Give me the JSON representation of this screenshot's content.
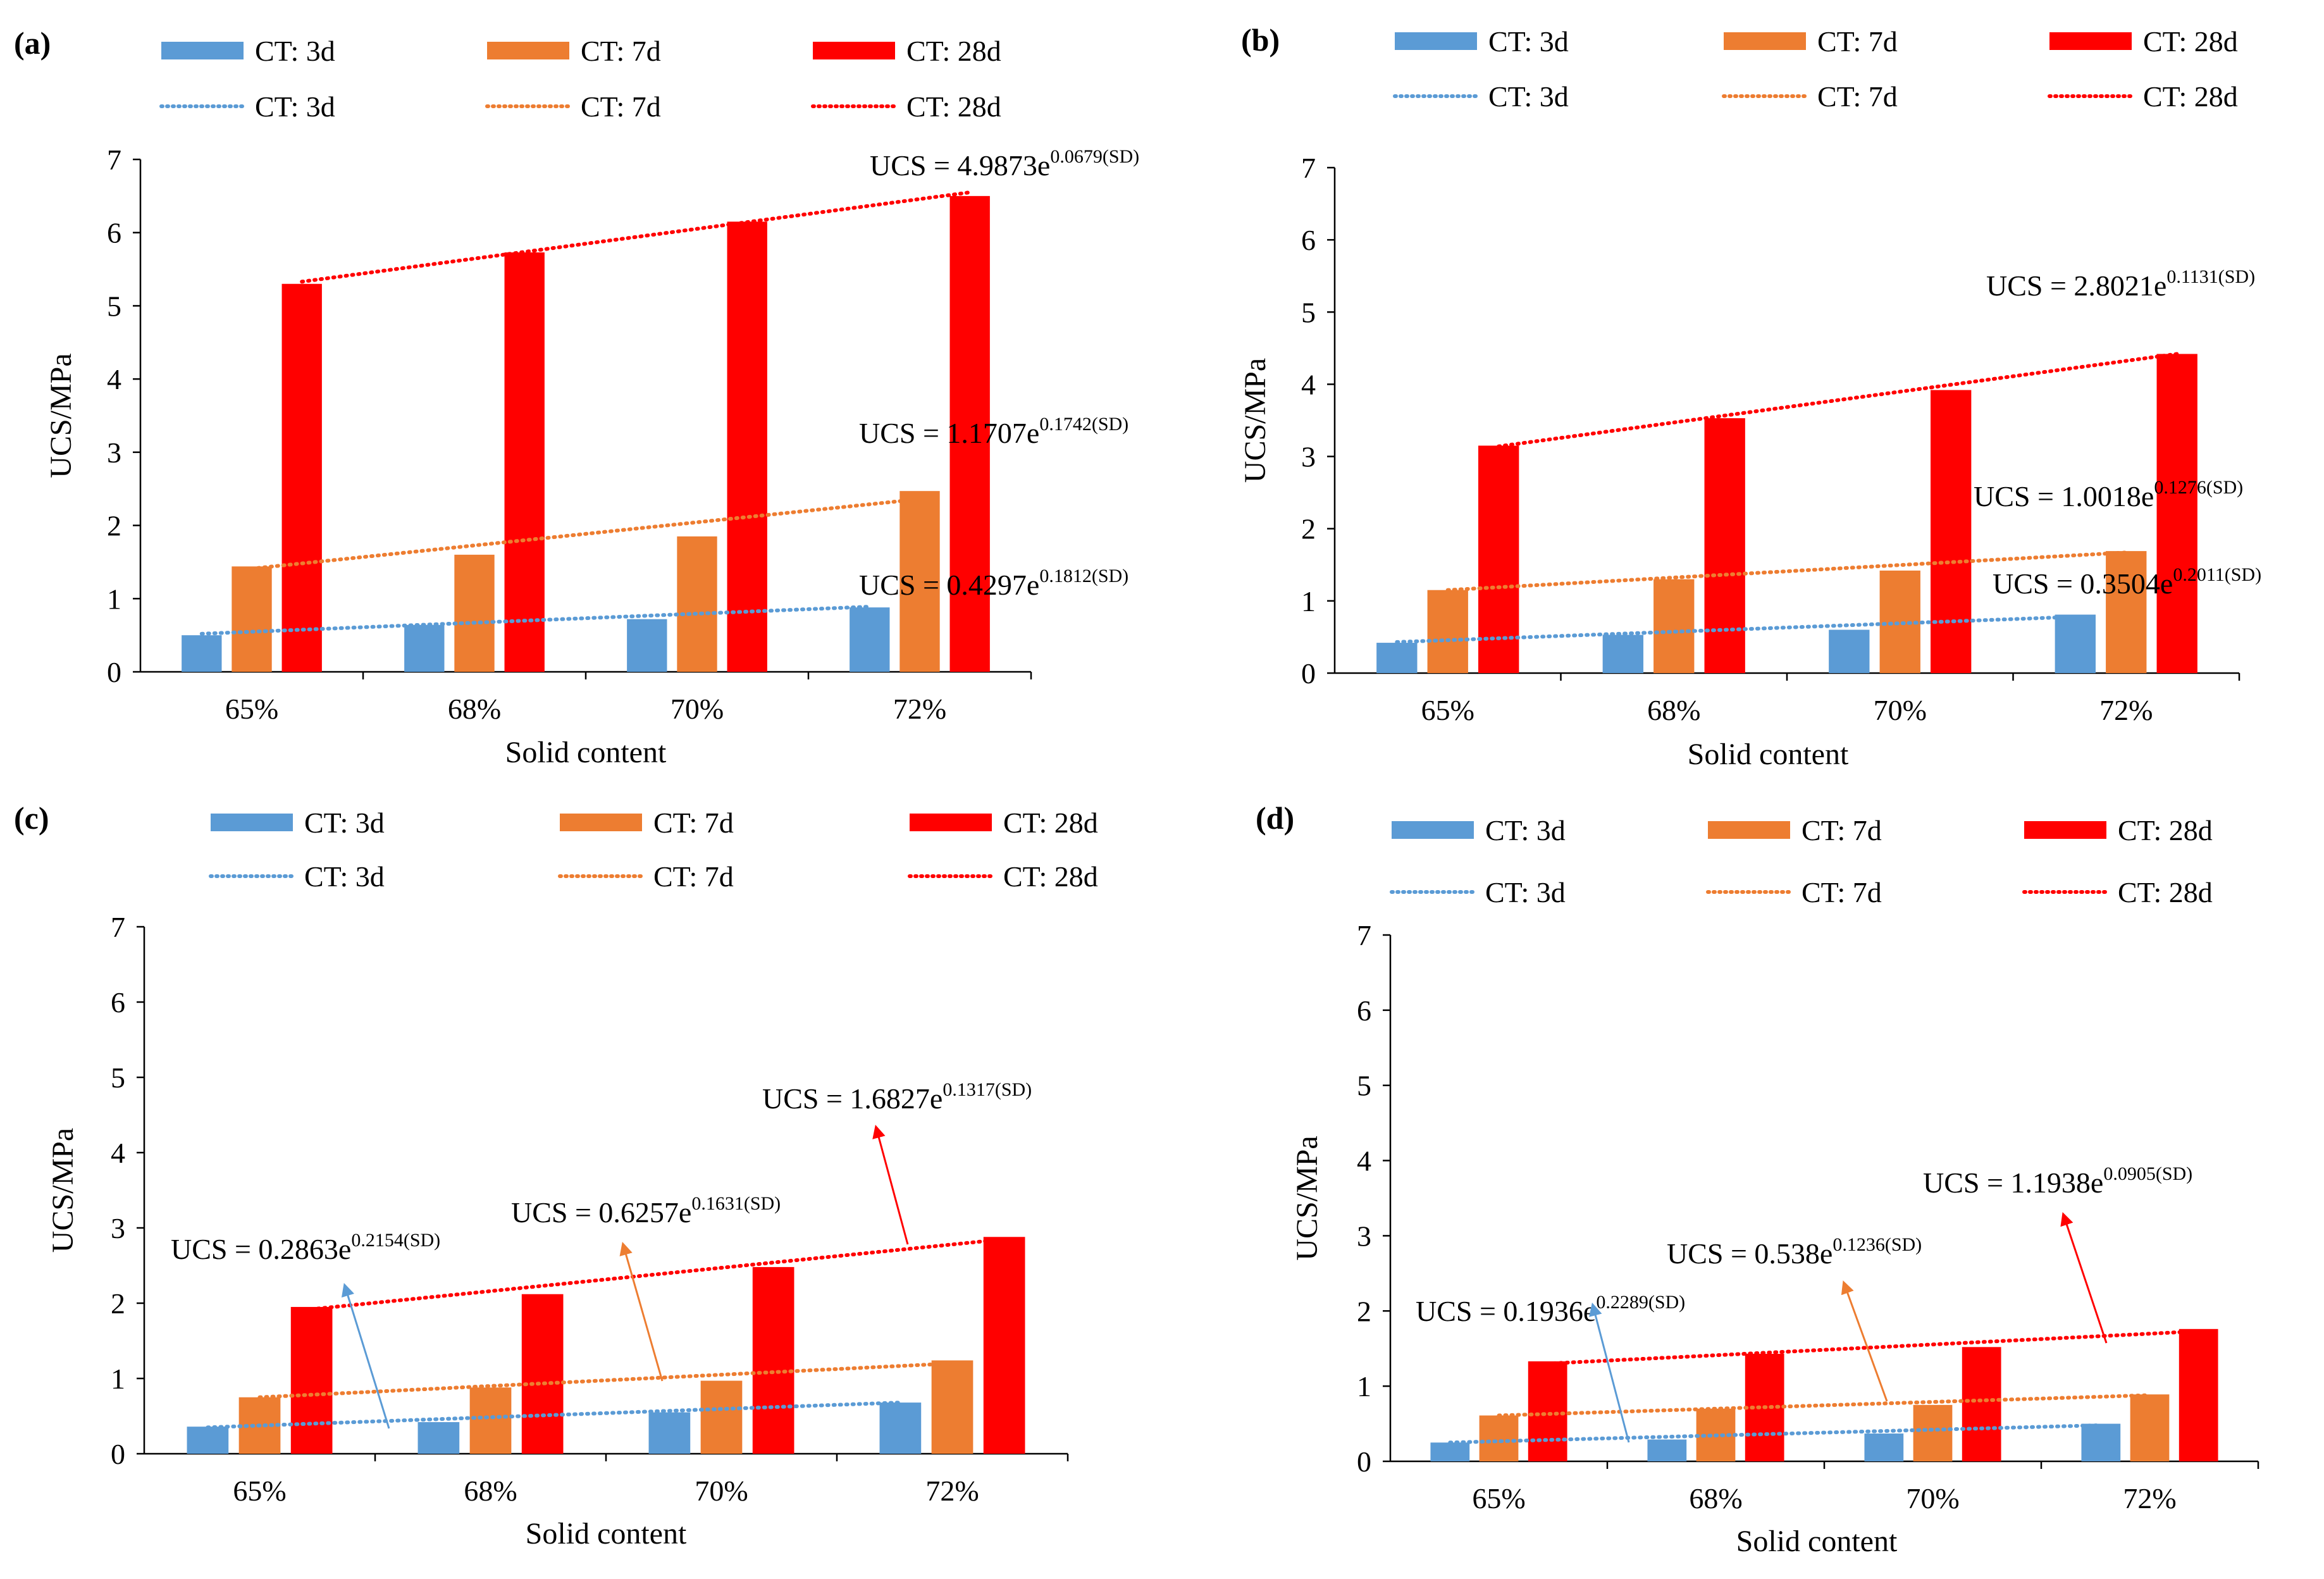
{
  "figure": {
    "legend_labels": [
      "CT: 3d",
      "CT: 7d",
      "CT: 28d"
    ],
    "colors": {
      "ct3": "#5B9BD5",
      "ct7": "#ED7D31",
      "ct28": "#FF0000",
      "axis": "#000000"
    }
  },
  "chart_data": [
    {
      "panel": "(a)",
      "type": "bar",
      "categories": [
        "65%",
        "68%",
        "70%",
        "72%"
      ],
      "series": [
        {
          "name": "CT: 3d",
          "values": [
            0.5,
            0.64,
            0.72,
            0.88
          ]
        },
        {
          "name": "CT: 7d",
          "values": [
            1.44,
            1.6,
            1.85,
            2.47
          ]
        },
        {
          "name": "CT: 28d",
          "values": [
            5.3,
            5.73,
            6.15,
            6.5
          ]
        }
      ],
      "trendlines": [
        {
          "series": "CT: 3d",
          "equation_main": "UCS = 0.4297e",
          "equation_exp": "0.1812(SD)",
          "start": 0.52,
          "end": 0.89
        },
        {
          "series": "CT: 7d",
          "equation_main": "UCS = 1.1707e",
          "equation_exp": "0.1742(SD)",
          "start": 1.41,
          "end": 2.36
        },
        {
          "series": "CT: 28d",
          "equation_main": "UCS = 4.9873e",
          "equation_exp": "0.0679(SD)",
          "start": 5.33,
          "end": 6.55
        }
      ],
      "xlabel": "Solid content",
      "ylabel": "UCS/MPa",
      "ylim": [
        0,
        7
      ],
      "yticks": [
        "0",
        "1",
        "2",
        "3",
        "4",
        "5",
        "6",
        "7"
      ],
      "grid": false
    },
    {
      "panel": "(b)",
      "type": "bar",
      "categories": [
        "65%",
        "68%",
        "70%",
        "72%"
      ],
      "series": [
        {
          "name": "CT: 3d",
          "values": [
            0.42,
            0.53,
            0.6,
            0.81
          ]
        },
        {
          "name": "CT: 7d",
          "values": [
            1.15,
            1.3,
            1.42,
            1.69
          ]
        },
        {
          "name": "CT: 28d",
          "values": [
            3.15,
            3.53,
            3.92,
            4.42
          ]
        }
      ],
      "trendlines": [
        {
          "series": "CT: 3d",
          "equation_main": "UCS = 0.3504e",
          "equation_exp": "0.2011(SD)",
          "start": 0.43,
          "end": 0.78
        },
        {
          "series": "CT: 7d",
          "equation_main": "UCS = 1.0018e",
          "equation_exp": "0.1276(SD)",
          "start": 1.15,
          "end": 1.67
        },
        {
          "series": "CT: 28d",
          "equation_main": "UCS = 2.8021e",
          "equation_exp": "0.1131(SD)",
          "start": 3.14,
          "end": 4.42
        }
      ],
      "xlabel": "Solid content",
      "ylabel": "UCS/MPa",
      "ylim": [
        0,
        7
      ],
      "yticks": [
        "0",
        "1",
        "2",
        "3",
        "4",
        "5",
        "6",
        "7"
      ],
      "grid": false
    },
    {
      "panel": "(c)",
      "type": "bar",
      "categories": [
        "65%",
        "68%",
        "70%",
        "72%"
      ],
      "series": [
        {
          "name": "CT: 3d",
          "values": [
            0.36,
            0.42,
            0.55,
            0.68
          ]
        },
        {
          "name": "CT: 7d",
          "values": [
            0.75,
            0.88,
            0.97,
            1.24
          ]
        },
        {
          "name": "CT: 28d",
          "values": [
            1.95,
            2.12,
            2.48,
            2.88
          ]
        }
      ],
      "trendlines": [
        {
          "series": "CT: 3d",
          "equation_main": "UCS = 0.2863e",
          "equation_exp": "0.2154(SD)",
          "start": 0.35,
          "end": 0.68
        },
        {
          "series": "CT: 7d",
          "equation_main": "UCS = 0.6257e",
          "equation_exp": "0.1631(SD)",
          "start": 0.75,
          "end": 1.2
        },
        {
          "series": "CT: 28d",
          "equation_main": "UCS = 1.6827e",
          "equation_exp": "0.1317(SD)",
          "start": 1.92,
          "end": 2.85
        }
      ],
      "xlabel": "Solid content",
      "ylabel": "UCS/MPa",
      "ylim": [
        0,
        7
      ],
      "yticks": [
        "0",
        "1",
        "2",
        "3",
        "4",
        "5",
        "6",
        "7"
      ],
      "grid": false
    },
    {
      "panel": "(d)",
      "type": "bar",
      "categories": [
        "65%",
        "68%",
        "70%",
        "72%"
      ],
      "series": [
        {
          "name": "CT: 3d",
          "values": [
            0.25,
            0.29,
            0.37,
            0.5
          ]
        },
        {
          "name": "CT: 7d",
          "values": [
            0.61,
            0.7,
            0.75,
            0.89
          ]
        },
        {
          "name": "CT: 28d",
          "values": [
            1.33,
            1.43,
            1.52,
            1.76
          ]
        }
      ],
      "trendlines": [
        {
          "series": "CT: 3d",
          "equation_main": "UCS = 0.1936e",
          "equation_exp": "0.2289(SD)",
          "start": 0.25,
          "end": 0.48
        },
        {
          "series": "CT: 7d",
          "equation_main": "UCS = 0.538e",
          "equation_exp": "0.1236(SD)",
          "start": 0.61,
          "end": 0.88
        },
        {
          "series": "CT: 28d",
          "equation_main": "UCS = 1.1938e",
          "equation_exp": "0.0905(SD)",
          "start": 1.3,
          "end": 1.73
        }
      ],
      "xlabel": "Solid content",
      "ylabel": "UCS/MPa",
      "ylim": [
        0,
        7
      ],
      "yticks": [
        "0",
        "1",
        "2",
        "3",
        "4",
        "5",
        "6",
        "7"
      ],
      "grid": false
    }
  ]
}
